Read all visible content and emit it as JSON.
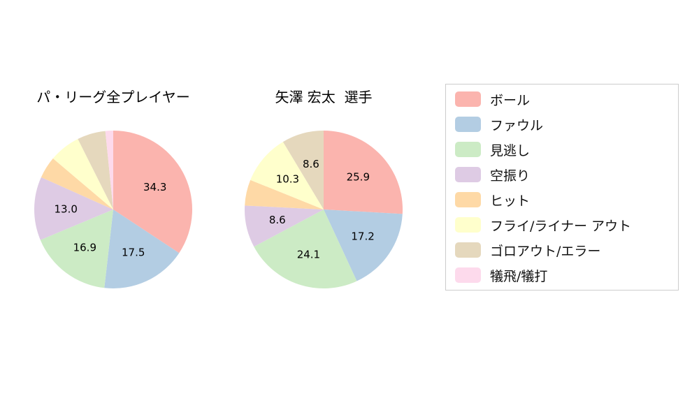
{
  "figure": {
    "background": "#ffffff",
    "legend_border_color": "#cccccc"
  },
  "chart_data": [
    {
      "type": "pie",
      "title": "パ・リーグ全プレイヤー",
      "labels": [
        "ボール",
        "ファウル",
        "見逃し",
        "空振り",
        "ヒット",
        "フライ/ライナー アウト",
        "ゴロアウト/エラー",
        "犠飛/犠打"
      ],
      "values": [
        34.3,
        17.5,
        16.9,
        13.0,
        4.5,
        6.4,
        5.8,
        1.6
      ],
      "visible_value_labels": [
        "34.3",
        "17.5",
        "16.9",
        "13.0"
      ],
      "colors": [
        "#fbb4ae",
        "#b3cde3",
        "#ccebc5",
        "#decbe4",
        "#fed9a6",
        "#ffffcc",
        "#e5d8bd",
        "#fddaec"
      ],
      "start_angle": "top",
      "direction": "clockwise",
      "label_threshold": 8
    },
    {
      "type": "pie",
      "title": "矢澤 宏太  選手",
      "labels": [
        "ボール",
        "ファウル",
        "見逃し",
        "空振り",
        "ヒット",
        "フライ/ライナー アウト",
        "ゴロアウト/エラー",
        "犠飛/犠打"
      ],
      "values": [
        25.9,
        17.2,
        24.1,
        8.6,
        5.3,
        10.3,
        8.6,
        0
      ],
      "visible_value_labels": [
        "25.9",
        "17.2",
        "24.1",
        "8.6",
        "10.3",
        "8.6"
      ],
      "colors": [
        "#fbb4ae",
        "#b3cde3",
        "#ccebc5",
        "#decbe4",
        "#fed9a6",
        "#ffffcc",
        "#e5d8bd",
        "#fddaec"
      ],
      "start_angle": "top",
      "direction": "clockwise",
      "label_threshold": 8
    }
  ],
  "legend": {
    "position": "right",
    "items": [
      {
        "label": "ボール",
        "color": "#fbb4ae"
      },
      {
        "label": "ファウル",
        "color": "#b3cde3"
      },
      {
        "label": "見逃し",
        "color": "#ccebc5"
      },
      {
        "label": "空振り",
        "color": "#decbe4"
      },
      {
        "label": "ヒット",
        "color": "#fed9a6"
      },
      {
        "label": "フライ/ライナー アウト",
        "color": "#ffffcc"
      },
      {
        "label": "ゴロアウト/エラー",
        "color": "#e5d8bd"
      },
      {
        "label": "犠飛/犠打",
        "color": "#fddaec"
      }
    ]
  }
}
